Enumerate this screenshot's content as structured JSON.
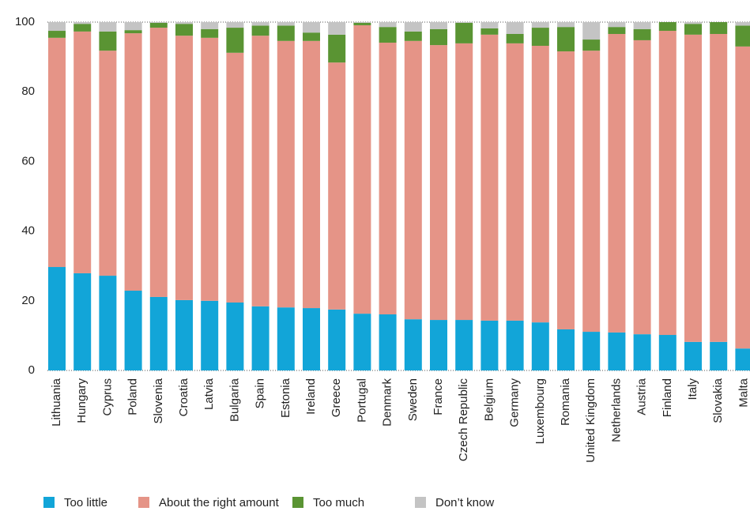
{
  "chart_data": {
    "type": "stacked_bar",
    "categories": [
      "Lithuania",
      "Hungary",
      "Cyprus",
      "Poland",
      "Slovenia",
      "Croatia",
      "Latvia",
      "Bulgaria",
      "Spain",
      "Estonia",
      "Ireland",
      "Greece",
      "Portugal",
      "Denmark",
      "Sweden",
      "France",
      "Czech Republic",
      "Belgium",
      "Germany",
      "Luxembourg",
      "Romania",
      "United Kingdom",
      "Netherlands",
      "Austria",
      "Finland",
      "Italy",
      "Slovakia",
      "Malta"
    ],
    "series": [
      {
        "name": "Too little",
        "color": "#12a5d8",
        "values": [
          29.7,
          27.9,
          27.2,
          22.9,
          21.1,
          20.2,
          20.0,
          19.5,
          18.4,
          18.1,
          17.9,
          17.5,
          16.3,
          16.1,
          14.7,
          14.5,
          14.5,
          14.3,
          14.3,
          13.8,
          11.8,
          11.1,
          10.9,
          10.4,
          10.2,
          8.2,
          8.2,
          6.3
        ]
      },
      {
        "name": "About the right amount",
        "color": "#e59487",
        "values": [
          65.8,
          69.4,
          64.6,
          73.9,
          77.3,
          75.9,
          75.5,
          71.7,
          77.7,
          76.5,
          76.7,
          70.9,
          82.8,
          78.0,
          79.9,
          78.9,
          79.4,
          82.1,
          79.6,
          79.4,
          79.8,
          80.7,
          85.7,
          84.4,
          87.3,
          88.2,
          88.4,
          86.7
        ]
      },
      {
        "name": "Too much",
        "color": "#5a9433",
        "values": [
          2.0,
          2.2,
          5.5,
          0.9,
          1.4,
          3.4,
          2.5,
          7.2,
          2.9,
          4.4,
          2.4,
          8.0,
          0.7,
          4.5,
          2.7,
          4.6,
          5.9,
          1.8,
          2.7,
          5.2,
          7.0,
          3.2,
          2.0,
          3.2,
          2.5,
          3.1,
          3.4,
          6.0
        ]
      },
      {
        "name": "Don’t know",
        "color": "#c4c4c4",
        "values": [
          2.5,
          0.5,
          2.7,
          2.3,
          0.2,
          0.5,
          2.0,
          1.6,
          1.0,
          1.0,
          3.0,
          3.6,
          0.2,
          1.4,
          2.7,
          2.0,
          0.2,
          1.8,
          3.4,
          1.6,
          1.4,
          5.0,
          1.4,
          2.0,
          0,
          0.5,
          0,
          1.0
        ]
      }
    ],
    "ylim": [
      0,
      100
    ],
    "yticks": [
      0,
      20,
      40,
      60,
      80,
      100
    ],
    "legend": "bottom"
  }
}
